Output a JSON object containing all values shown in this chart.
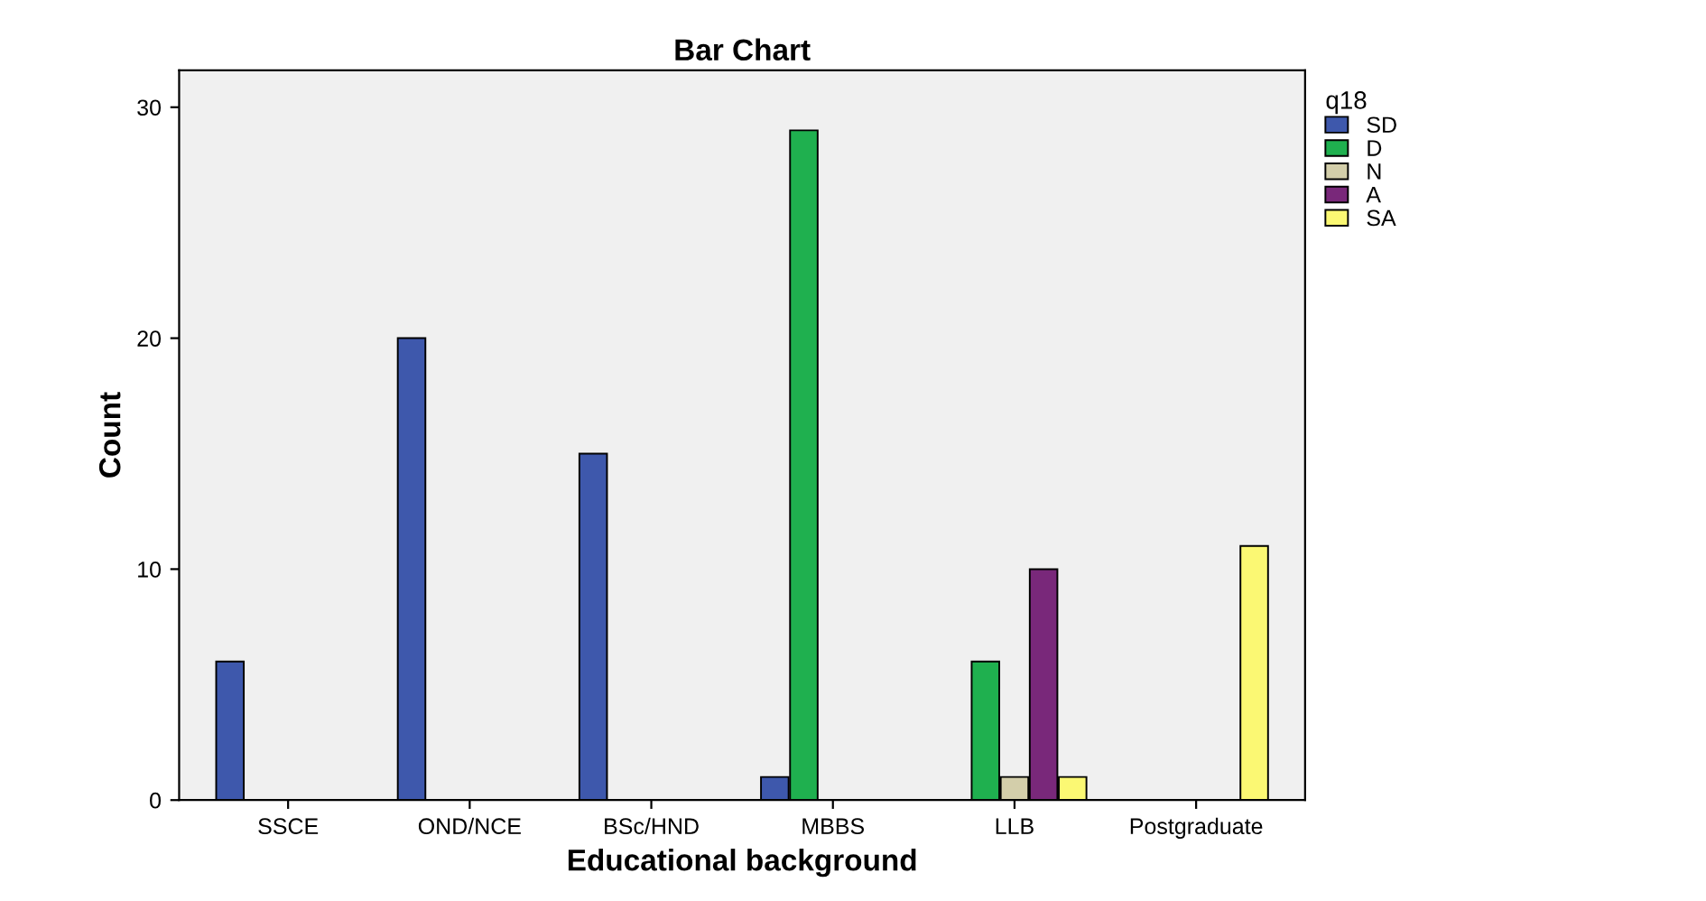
{
  "chart_data": {
    "type": "bar",
    "title": "Bar Chart",
    "xlabel": "Educational background",
    "ylabel": "Count",
    "legend_title": "q18",
    "categories": [
      "SSCE",
      "OND/NCE",
      "BSc/HND",
      "MBBS",
      "LLB",
      "Postgraduate"
    ],
    "series": [
      {
        "name": "SD",
        "color": "#3e58ac",
        "values": [
          6,
          20,
          15,
          1,
          null,
          null
        ]
      },
      {
        "name": "D",
        "color": "#1fb04f",
        "values": [
          null,
          null,
          null,
          29,
          6,
          null
        ]
      },
      {
        "name": "N",
        "color": "#d3ceaa",
        "values": [
          null,
          null,
          null,
          null,
          1,
          null
        ]
      },
      {
        "name": "A",
        "color": "#79287a",
        "values": [
          null,
          null,
          null,
          null,
          10,
          null
        ]
      },
      {
        "name": "SA",
        "color": "#fbf873",
        "values": [
          null,
          null,
          null,
          null,
          1,
          11
        ]
      }
    ],
    "ylim": [
      0,
      31.6
    ],
    "yticks": [
      0,
      10,
      20,
      30
    ],
    "grid": false,
    "legend": "top right"
  }
}
